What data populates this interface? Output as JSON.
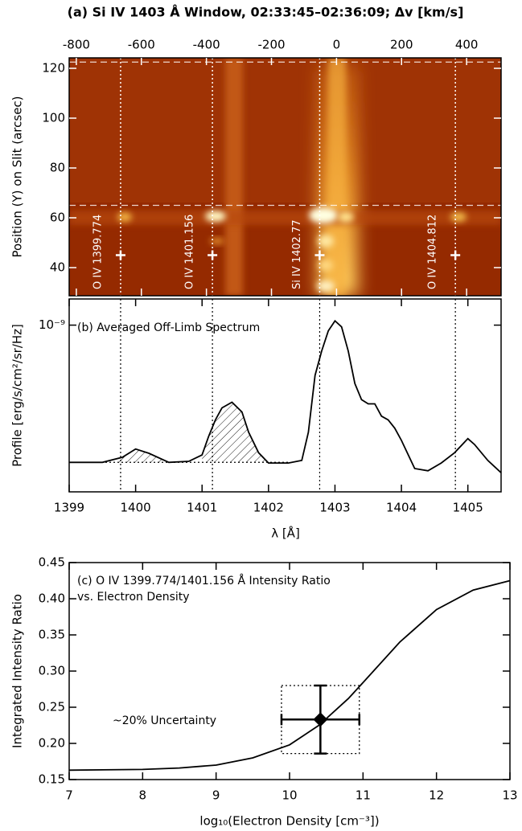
{
  "chart_data": [
    {
      "type": "image",
      "title": "(a) Si IV 1403 Å Window, 02:33:45–02:36:09; Δv [km/s]",
      "ylabel": "Position (Y) on Slit (arcsec)",
      "xlim": [
        -822,
        506
      ],
      "xticks": [
        -800,
        -600,
        -400,
        -200,
        0,
        200,
        400
      ],
      "ylim": [
        28.7,
        124.2
      ],
      "yticks": [
        40,
        60,
        80,
        100,
        120
      ],
      "dashed_y": [
        122.5,
        65
      ],
      "marker_y": 45,
      "lines": [
        {
          "label": "O IV 1399.774",
          "wavelength": 1399.774
        },
        {
          "label": "O IV 1401.156",
          "wavelength": 1401.156
        },
        {
          "label": "Si IV 1402.77",
          "wavelength": 1402.77
        },
        {
          "label": "O IV 1404.812",
          "wavelength": 1404.812
        }
      ]
    },
    {
      "type": "line",
      "title": "(b) Averaged Off-Limb Spectrum",
      "xlabel": "λ [Å]",
      "ylabel": "Profile [erg/s/cm²/sr/Hz]",
      "xlim": [
        1399,
        1405.5
      ],
      "xticks": [
        1399,
        1400,
        1401,
        1402,
        1403,
        1404,
        1405
      ],
      "ylim": [
        5e-11,
        1.6e-09
      ],
      "yscale": "log",
      "yticks": [
        {
          "value": 1e-09,
          "label": "10⁻⁹"
        }
      ],
      "color": "#000000",
      "x": [
        1399,
        1399.5,
        1399.8,
        1400,
        1400.2,
        1400.5,
        1400.8,
        1401,
        1401.1,
        1401.2,
        1401.3,
        1401.45,
        1401.6,
        1401.7,
        1401.85,
        1402,
        1402.3,
        1402.5,
        1402.6,
        1402.7,
        1402.8,
        1402.9,
        1403,
        1403.1,
        1403.2,
        1403.3,
        1403.4,
        1403.5,
        1403.6,
        1403.7,
        1403.8,
        1403.9,
        1404,
        1404.2,
        1404.4,
        1404.6,
        1404.8,
        1405,
        1405.1,
        1405.3,
        1405.5
      ],
      "values": [
        8.5e-11,
        8.5e-11,
        9.3e-11,
        1.08e-10,
        1e-10,
        8.5e-11,
        8.65e-11,
        9.7e-11,
        1.36e-10,
        1.82e-10,
        2.26e-10,
        2.5e-10,
        2.1e-10,
        1.46e-10,
        1.01e-10,
        8.4e-11,
        8.4e-11,
        8.8e-11,
        1.46e-10,
        4.05e-10,
        6.27e-10,
        9.03e-10,
        1.08e-09,
        9.7e-10,
        6.27e-10,
        3.5e-10,
        2.62e-10,
        2.43e-10,
        2.43e-10,
        1.95e-10,
        1.82e-10,
        1.57e-10,
        1.26e-10,
        7.6e-11,
        7.3e-11,
        8.4e-11,
        1.01e-10,
        1.3e-10,
        1.17e-10,
        8.8e-11,
        7.05e-11
      ],
      "baseline": 8.5e-11,
      "hatched": [
        [
          1399.7,
          1400.5
        ],
        [
          1401.0,
          1402.0
        ]
      ]
    },
    {
      "type": "line",
      "title": "(c) O IV 1399.774/1401.156 Å Intensity Ratio",
      "subtitle": "vs. Electron Density",
      "xlabel": "log₁₀(Electron Density [cm⁻³])",
      "ylabel": "Integrated Intensity Ratio",
      "xlim": [
        7,
        13
      ],
      "xticks": [
        7,
        8,
        9,
        10,
        11,
        12,
        13
      ],
      "ylim": [
        0.15,
        0.45
      ],
      "yticks": [
        0.15,
        {
          "value": 0.2,
          "label": "0.20"
        },
        0.25,
        {
          "value": 0.3,
          "label": "0.30"
        },
        0.35,
        {
          "value": 0.4,
          "label": "0.40"
        },
        0.45
      ],
      "color": "#000000",
      "x": [
        7,
        8,
        8.5,
        9,
        9.5,
        10,
        10.4,
        10.8,
        11,
        11.5,
        12,
        12.5,
        13
      ],
      "values": [
        0.163,
        0.164,
        0.166,
        0.17,
        0.18,
        0.198,
        0.225,
        0.262,
        0.284,
        0.34,
        0.385,
        0.412,
        0.425
      ],
      "point": {
        "x": 10.42,
        "y": 0.233,
        "xerr": 0.53,
        "yerr": 0.047
      },
      "annotation": "~20% Uncertainty"
    }
  ]
}
